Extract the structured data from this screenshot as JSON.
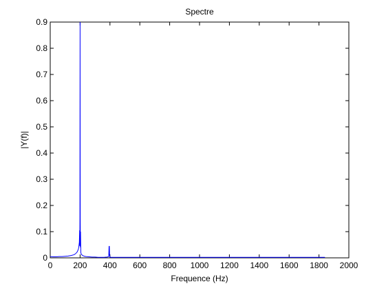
{
  "chart_data": {
    "type": "line",
    "title": "Spectre",
    "xlabel": "Frequence (Hz)",
    "ylabel": "|Y(f)|",
    "xlim": [
      0,
      2000
    ],
    "ylim": [
      0,
      0.9
    ],
    "xticks": [
      0,
      200,
      400,
      600,
      800,
      1000,
      1200,
      1400,
      1600,
      1800,
      2000
    ],
    "yticks": [
      0,
      0.1,
      0.2,
      0.3,
      0.4,
      0.5,
      0.6,
      0.7,
      0.8,
      0.9
    ],
    "xtick_labels": [
      "0",
      "200",
      "400",
      "600",
      "800",
      "1000",
      "1200",
      "1400",
      "1600",
      "1800",
      "2000"
    ],
    "ytick_labels": [
      "0",
      "0.1",
      "0.2",
      "0.3",
      "0.4",
      "0.5",
      "0.6",
      "0.7",
      "0.8",
      "0.9"
    ],
    "grid": false,
    "line_color": "#0000ff",
    "series": [
      {
        "x": [
          0,
          20,
          40,
          60,
          80,
          100,
          120,
          140,
          160,
          170,
          180,
          185,
          190,
          193,
          195,
          197,
          198,
          199,
          200,
          201,
          202,
          203,
          205,
          207,
          210,
          215,
          220,
          230,
          240,
          260,
          280,
          300,
          320,
          340,
          360,
          380,
          390,
          392,
          394,
          395,
          396,
          398,
          400,
          405,
          410,
          420,
          440,
          500,
          600,
          700,
          800,
          900,
          1000,
          1100,
          1200,
          1300,
          1400,
          1500,
          1600,
          1700,
          1800,
          1840
        ],
        "y": [
          0.005,
          0.004,
          0.004,
          0.005,
          0.005,
          0.006,
          0.007,
          0.009,
          0.012,
          0.016,
          0.022,
          0.028,
          0.036,
          0.05,
          0.06,
          0.105,
          0.045,
          0.15,
          0.9,
          0.15,
          0.04,
          0.1,
          0.02,
          0.016,
          0.012,
          0.01,
          0.008,
          0.006,
          0.005,
          0.004,
          0.003,
          0.003,
          0.002,
          0.002,
          0.002,
          0.003,
          0.004,
          0.008,
          0.045,
          0.01,
          0.045,
          0.006,
          0.003,
          0.002,
          0.002,
          0.002,
          0.002,
          0.002,
          0.002,
          0.002,
          0.002,
          0.002,
          0.002,
          0.002,
          0.002,
          0.002,
          0.002,
          0.002,
          0.002,
          0.002,
          0.002,
          0.002
        ]
      }
    ]
  }
}
